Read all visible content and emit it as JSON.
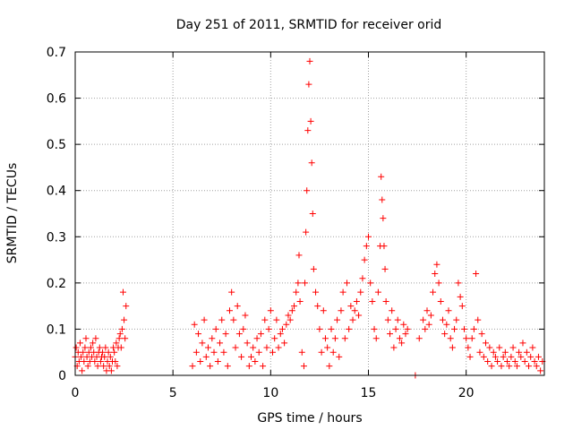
{
  "chart_data": {
    "type": "scatter",
    "title": "Day 251 of 2011, SRMTID for receiver orid",
    "xlabel": "GPS time / hours",
    "ylabel": "SRMTID / TECUs",
    "xlim": [
      0,
      24
    ],
    "ylim": [
      0,
      0.7
    ],
    "xticks": [
      0,
      5,
      10,
      15,
      20
    ],
    "yticks": [
      0,
      0.1,
      0.2,
      0.3,
      0.4,
      0.5,
      0.6,
      0.7
    ],
    "xtick_labels": [
      "0",
      "5",
      "10",
      "15",
      "20"
    ],
    "ytick_labels": [
      "0",
      "0.1",
      "0.2",
      "0.3",
      "0.4",
      "0.5",
      "0.6",
      "0.7"
    ],
    "grid": true,
    "marker": "+",
    "color": "#ff0000",
    "series": [
      {
        "name": "SRMTID",
        "points": [
          [
            0.0,
            0.04
          ],
          [
            0.05,
            0.06
          ],
          [
            0.1,
            0.02
          ],
          [
            0.15,
            0.05
          ],
          [
            0.2,
            0.03
          ],
          [
            0.25,
            0.07
          ],
          [
            0.3,
            0.04
          ],
          [
            0.35,
            0.01
          ],
          [
            0.4,
            0.05
          ],
          [
            0.45,
            0.03
          ],
          [
            0.5,
            0.06
          ],
          [
            0.55,
            0.08
          ],
          [
            0.6,
            0.04
          ],
          [
            0.65,
            0.02
          ],
          [
            0.7,
            0.05
          ],
          [
            0.75,
            0.03
          ],
          [
            0.8,
            0.06
          ],
          [
            0.85,
            0.04
          ],
          [
            0.9,
            0.07
          ],
          [
            0.95,
            0.05
          ],
          [
            1.0,
            0.03
          ],
          [
            1.05,
            0.08
          ],
          [
            1.1,
            0.04
          ],
          [
            1.15,
            0.02
          ],
          [
            1.2,
            0.05
          ],
          [
            1.25,
            0.06
          ],
          [
            1.3,
            0.03
          ],
          [
            1.35,
            0.04
          ],
          [
            1.4,
            0.05
          ],
          [
            1.45,
            0.02
          ],
          [
            1.5,
            0.04
          ],
          [
            1.55,
            0.06
          ],
          [
            1.6,
            0.01
          ],
          [
            1.65,
            0.03
          ],
          [
            1.7,
            0.05
          ],
          [
            1.75,
            0.02
          ],
          [
            1.8,
            0.04
          ],
          [
            1.85,
            0.01
          ],
          [
            1.9,
            0.03
          ],
          [
            1.95,
            0.06
          ],
          [
            2.0,
            0.05
          ],
          [
            2.05,
            0.03
          ],
          [
            2.1,
            0.07
          ],
          [
            2.15,
            0.02
          ],
          [
            2.2,
            0.06
          ],
          [
            2.25,
            0.08
          ],
          [
            2.3,
            0.09
          ],
          [
            2.35,
            0.06
          ],
          [
            2.4,
            0.1
          ],
          [
            2.45,
            0.18
          ],
          [
            2.5,
            0.12
          ],
          [
            2.55,
            0.08
          ],
          [
            2.6,
            0.15
          ],
          [
            6.0,
            0.02
          ],
          [
            6.1,
            0.11
          ],
          [
            6.2,
            0.05
          ],
          [
            6.3,
            0.09
          ],
          [
            6.4,
            0.03
          ],
          [
            6.5,
            0.07
          ],
          [
            6.6,
            0.12
          ],
          [
            6.7,
            0.04
          ],
          [
            6.8,
            0.06
          ],
          [
            6.9,
            0.02
          ],
          [
            7.0,
            0.08
          ],
          [
            7.1,
            0.05
          ],
          [
            7.2,
            0.1
          ],
          [
            7.3,
            0.03
          ],
          [
            7.4,
            0.07
          ],
          [
            7.5,
            0.12
          ],
          [
            7.6,
            0.05
          ],
          [
            7.7,
            0.09
          ],
          [
            7.8,
            0.02
          ],
          [
            7.9,
            0.14
          ],
          [
            8.0,
            0.18
          ],
          [
            8.1,
            0.12
          ],
          [
            8.2,
            0.06
          ],
          [
            8.3,
            0.15
          ],
          [
            8.4,
            0.09
          ],
          [
            8.5,
            0.04
          ],
          [
            8.6,
            0.1
          ],
          [
            8.7,
            0.13
          ],
          [
            8.8,
            0.07
          ],
          [
            8.9,
            0.02
          ],
          [
            9.0,
            0.04
          ],
          [
            9.1,
            0.06
          ],
          [
            9.2,
            0.03
          ],
          [
            9.3,
            0.08
          ],
          [
            9.4,
            0.05
          ],
          [
            9.5,
            0.09
          ],
          [
            9.6,
            0.02
          ],
          [
            9.7,
            0.12
          ],
          [
            9.8,
            0.06
          ],
          [
            9.9,
            0.1
          ],
          [
            10.0,
            0.14
          ],
          [
            10.1,
            0.05
          ],
          [
            10.2,
            0.08
          ],
          [
            10.3,
            0.12
          ],
          [
            10.4,
            0.06
          ],
          [
            10.5,
            0.09
          ],
          [
            10.6,
            0.1
          ],
          [
            10.7,
            0.07
          ],
          [
            10.8,
            0.11
          ],
          [
            10.9,
            0.13
          ],
          [
            11.0,
            0.12
          ],
          [
            11.1,
            0.14
          ],
          [
            11.2,
            0.15
          ],
          [
            11.3,
            0.18
          ],
          [
            11.4,
            0.2
          ],
          [
            11.45,
            0.26
          ],
          [
            11.5,
            0.16
          ],
          [
            11.6,
            0.05
          ],
          [
            11.7,
            0.02
          ],
          [
            11.75,
            0.2
          ],
          [
            11.8,
            0.31
          ],
          [
            11.85,
            0.4
          ],
          [
            11.9,
            0.53
          ],
          [
            11.95,
            0.63
          ],
          [
            12.0,
            0.68
          ],
          [
            12.05,
            0.55
          ],
          [
            12.1,
            0.46
          ],
          [
            12.15,
            0.35
          ],
          [
            12.2,
            0.23
          ],
          [
            12.3,
            0.18
          ],
          [
            12.4,
            0.15
          ],
          [
            12.5,
            0.1
          ],
          [
            12.6,
            0.05
          ],
          [
            12.7,
            0.14
          ],
          [
            12.8,
            0.08
          ],
          [
            12.9,
            0.06
          ],
          [
            13.0,
            0.02
          ],
          [
            13.1,
            0.1
          ],
          [
            13.2,
            0.05
          ],
          [
            13.3,
            0.08
          ],
          [
            13.4,
            0.12
          ],
          [
            13.5,
            0.04
          ],
          [
            13.6,
            0.14
          ],
          [
            13.7,
            0.18
          ],
          [
            13.8,
            0.08
          ],
          [
            13.9,
            0.2
          ],
          [
            14.0,
            0.1
          ],
          [
            14.1,
            0.15
          ],
          [
            14.2,
            0.12
          ],
          [
            14.3,
            0.14
          ],
          [
            14.4,
            0.16
          ],
          [
            14.5,
            0.13
          ],
          [
            14.6,
            0.18
          ],
          [
            14.7,
            0.21
          ],
          [
            14.8,
            0.25
          ],
          [
            14.9,
            0.28
          ],
          [
            15.0,
            0.3
          ],
          [
            15.1,
            0.2
          ],
          [
            15.2,
            0.16
          ],
          [
            15.3,
            0.1
          ],
          [
            15.4,
            0.08
          ],
          [
            15.5,
            0.18
          ],
          [
            15.6,
            0.28
          ],
          [
            15.65,
            0.43
          ],
          [
            15.7,
            0.38
          ],
          [
            15.75,
            0.34
          ],
          [
            15.8,
            0.28
          ],
          [
            15.85,
            0.23
          ],
          [
            15.9,
            0.16
          ],
          [
            16.0,
            0.12
          ],
          [
            16.1,
            0.09
          ],
          [
            16.2,
            0.14
          ],
          [
            16.3,
            0.06
          ],
          [
            16.4,
            0.1
          ],
          [
            16.5,
            0.12
          ],
          [
            16.6,
            0.08
          ],
          [
            16.7,
            0.07
          ],
          [
            16.8,
            0.11
          ],
          [
            16.9,
            0.09
          ],
          [
            17.0,
            0.1
          ],
          [
            17.4,
            0.0
          ],
          [
            17.6,
            0.08
          ],
          [
            17.8,
            0.12
          ],
          [
            17.9,
            0.1
          ],
          [
            18.0,
            0.14
          ],
          [
            18.1,
            0.11
          ],
          [
            18.2,
            0.13
          ],
          [
            18.3,
            0.18
          ],
          [
            18.4,
            0.22
          ],
          [
            18.5,
            0.24
          ],
          [
            18.6,
            0.2
          ],
          [
            18.7,
            0.16
          ],
          [
            18.8,
            0.12
          ],
          [
            18.9,
            0.09
          ],
          [
            19.0,
            0.11
          ],
          [
            19.1,
            0.14
          ],
          [
            19.2,
            0.08
          ],
          [
            19.3,
            0.06
          ],
          [
            19.4,
            0.1
          ],
          [
            19.5,
            0.12
          ],
          [
            19.6,
            0.2
          ],
          [
            19.7,
            0.17
          ],
          [
            19.8,
            0.15
          ],
          [
            19.9,
            0.1
          ],
          [
            20.0,
            0.08
          ],
          [
            20.1,
            0.06
          ],
          [
            20.2,
            0.04
          ],
          [
            20.3,
            0.08
          ],
          [
            20.4,
            0.1
          ],
          [
            20.5,
            0.22
          ],
          [
            20.6,
            0.12
          ],
          [
            20.7,
            0.05
          ],
          [
            20.8,
            0.09
          ],
          [
            20.9,
            0.04
          ],
          [
            21.0,
            0.07
          ],
          [
            21.1,
            0.03
          ],
          [
            21.2,
            0.06
          ],
          [
            21.3,
            0.02
          ],
          [
            21.4,
            0.05
          ],
          [
            21.5,
            0.04
          ],
          [
            21.6,
            0.03
          ],
          [
            21.7,
            0.06
          ],
          [
            21.8,
            0.02
          ],
          [
            21.9,
            0.04
          ],
          [
            22.0,
            0.05
          ],
          [
            22.1,
            0.03
          ],
          [
            22.2,
            0.02
          ],
          [
            22.3,
            0.04
          ],
          [
            22.4,
            0.06
          ],
          [
            22.5,
            0.03
          ],
          [
            22.6,
            0.02
          ],
          [
            22.7,
            0.05
          ],
          [
            22.8,
            0.04
          ],
          [
            22.9,
            0.07
          ],
          [
            23.0,
            0.03
          ],
          [
            23.1,
            0.05
          ],
          [
            23.2,
            0.02
          ],
          [
            23.3,
            0.04
          ],
          [
            23.4,
            0.06
          ],
          [
            23.5,
            0.03
          ],
          [
            23.6,
            0.02
          ],
          [
            23.7,
            0.04
          ],
          [
            23.8,
            0.01
          ],
          [
            23.9,
            0.03
          ]
        ]
      }
    ]
  }
}
